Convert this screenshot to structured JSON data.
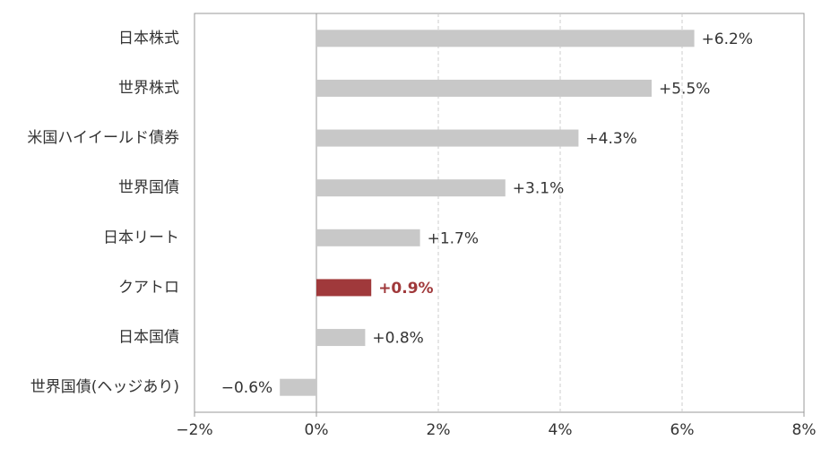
{
  "chart_data": {
    "type": "barh",
    "categories": [
      "日本株式",
      "世界株式",
      "米国ハイイールド債券",
      "世界国債",
      "日本リート",
      "クアトロ",
      "日本国債",
      "世界国債(ヘッジあり)"
    ],
    "values": [
      6.2,
      5.5,
      4.3,
      3.1,
      1.7,
      0.9,
      0.8,
      -0.6
    ],
    "value_labels": [
      "+6.2%",
      "+5.5%",
      "+4.3%",
      "+3.1%",
      "+1.7%",
      "+0.9%",
      "+0.8%",
      "−0.6%"
    ],
    "colors": [
      "#c8c8c8",
      "#c8c8c8",
      "#c8c8c8",
      "#c8c8c8",
      "#c8c8c8",
      "#a0393b",
      "#c8c8c8",
      "#c8c8c8"
    ],
    "label_colors": [
      "#333333",
      "#333333",
      "#333333",
      "#333333",
      "#333333",
      "#a0393b",
      "#333333",
      "#333333"
    ],
    "xlim": [
      -2,
      8
    ],
    "xticks": [
      {
        "value": -2,
        "label": "−2%"
      },
      {
        "value": 0,
        "label": "0%"
      },
      {
        "value": 2,
        "label": "2%"
      },
      {
        "value": 4,
        "label": "4%"
      },
      {
        "value": 6,
        "label": "6%"
      },
      {
        "value": 8,
        "label": "8%"
      }
    ],
    "grid": true
  }
}
